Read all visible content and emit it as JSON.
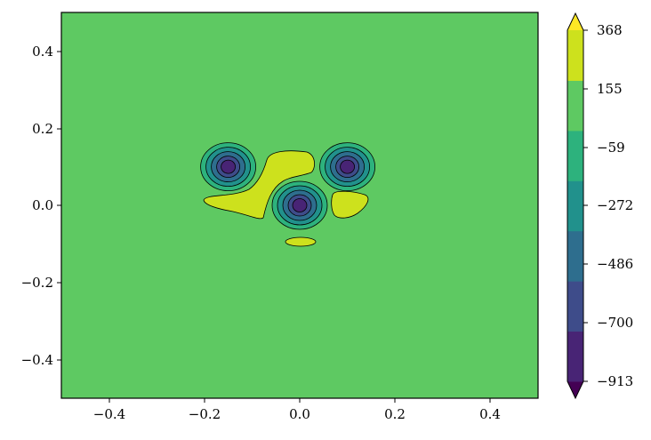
{
  "chart_data": {
    "type": "contourf",
    "title": "",
    "xlabel": "",
    "ylabel": "",
    "xlim": [
      -0.5,
      0.5
    ],
    "ylim": [
      -0.5,
      0.5
    ],
    "x_ticks": [
      -0.4,
      -0.2,
      0.0,
      0.2,
      0.4
    ],
    "x_tick_labels": [
      "−0.4",
      "−0.2",
      "0.0",
      "0.2",
      "0.4"
    ],
    "y_ticks": [
      -0.4,
      -0.2,
      0.0,
      0.2,
      0.4
    ],
    "y_tick_labels": [
      "−0.4",
      "−0.2",
      "0.0",
      "0.2",
      "0.4"
    ],
    "grid": false,
    "colormap": "viridis",
    "extend": "both",
    "levels": [
      -913,
      -700,
      -486,
      -272,
      -59,
      155,
      368
    ],
    "level_labels": [
      "−913",
      "−700",
      "−486",
      "−272",
      "−59",
      "155",
      "368"
    ],
    "band_colors": [
      "#482475",
      "#3e4c8a",
      "#2e6e8e",
      "#21918c",
      "#2db27d",
      "#5ec962",
      "#cde11d"
    ],
    "under_color": "#440154",
    "over_color": "#fde725",
    "background_color": "#5ec962",
    "features": [
      {
        "kind": "minimum",
        "x": -0.15,
        "y": 0.1,
        "peak": -913
      },
      {
        "kind": "minimum",
        "x": 0.1,
        "y": 0.1,
        "peak": -913
      },
      {
        "kind": "minimum",
        "x": 0.0,
        "y": 0.0,
        "peak": -913
      },
      {
        "kind": "maximum",
        "x": -0.08,
        "y": 0.04,
        "peak": 260
      },
      {
        "kind": "maximum",
        "x": 0.11,
        "y": 0.0,
        "peak": 230
      },
      {
        "kind": "maximum",
        "x": 0.005,
        "y": -0.095,
        "peak": 180
      }
    ]
  }
}
